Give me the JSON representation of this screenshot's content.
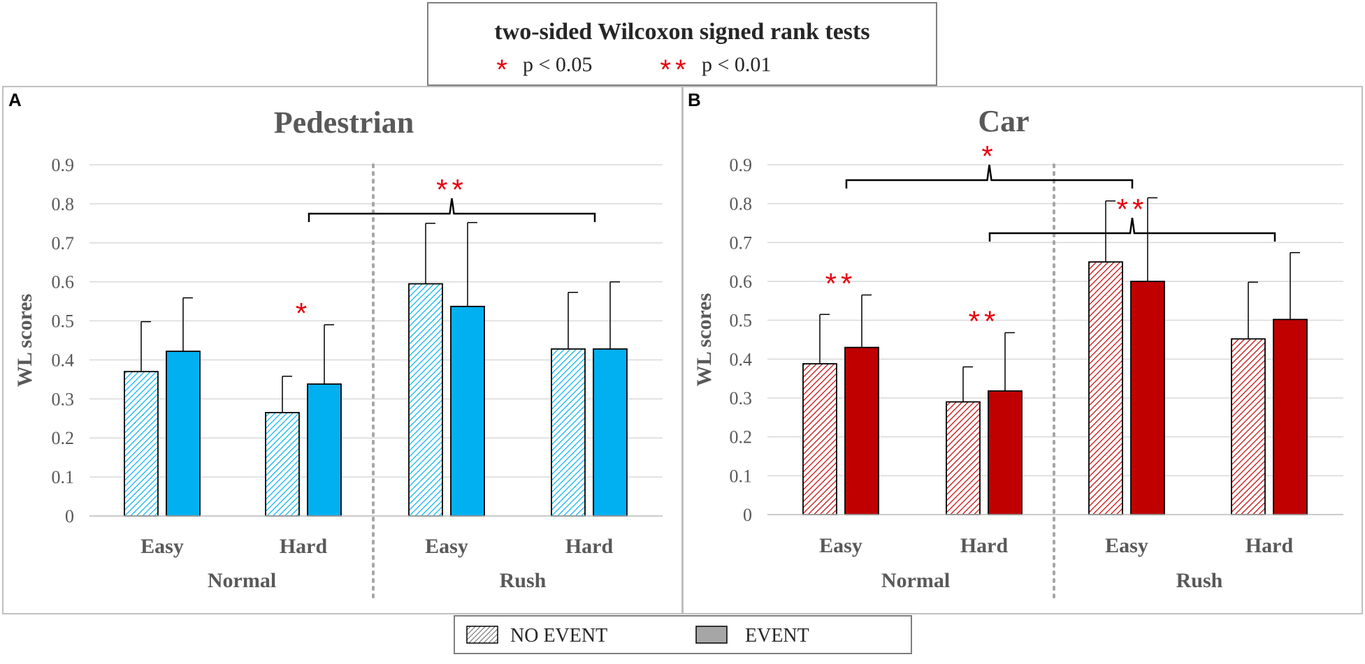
{
  "legend_box": {
    "title": "two-sided Wilcoxon signed rank tests",
    "sig1": {
      "stars": "*",
      "label": "p < 0.05"
    },
    "sig2": {
      "stars": "**",
      "label": "p < 0.01"
    }
  },
  "bottom_legend": {
    "no_event": "NO EVENT",
    "event": "EVENT"
  },
  "colors": {
    "pedestrian": "#00b0f0",
    "car": "#c00000",
    "star": "#e8000d",
    "grid": "#d9d9d9",
    "text": "#595959"
  },
  "chart_data": [
    {
      "panel_label": "A",
      "type": "bar",
      "title": "Pedestrian",
      "ylabel": "WL scores",
      "ylim": [
        0,
        0.9
      ],
      "yticks": [
        "0",
        "0.1",
        "0.2",
        "0.3",
        "0.4",
        "0.5",
        "0.6",
        "0.7",
        "0.8",
        "0.9"
      ],
      "categories": [
        "Easy",
        "Hard",
        "Easy",
        "Hard"
      ],
      "groups": [
        "Normal",
        "Rush"
      ],
      "series": [
        {
          "name": "NO EVENT",
          "values": [
            0.37,
            0.265,
            0.595,
            0.428
          ],
          "errors": [
            0.128,
            0.093,
            0.155,
            0.145
          ]
        },
        {
          "name": "EVENT",
          "values": [
            0.422,
            0.338,
            0.537,
            0.428
          ],
          "errors": [
            0.137,
            0.152,
            0.215,
            0.172
          ]
        }
      ],
      "annotations": [
        {
          "stars": "*",
          "category": 1
        },
        {
          "stars": "**",
          "bracket": [
            1,
            3
          ]
        }
      ]
    },
    {
      "panel_label": "B",
      "type": "bar",
      "title": "Car",
      "ylabel": "WL scores",
      "ylim": [
        0,
        0.9
      ],
      "yticks": [
        "0",
        "0.1",
        "0.2",
        "0.3",
        "0.4",
        "0.5",
        "0.6",
        "0.7",
        "0.8",
        "0.9"
      ],
      "categories": [
        "Easy",
        "Hard",
        "Easy",
        "Hard"
      ],
      "groups": [
        "Normal",
        "Rush"
      ],
      "series": [
        {
          "name": "NO EVENT",
          "values": [
            0.388,
            0.29,
            0.65,
            0.452
          ],
          "errors": [
            0.127,
            0.09,
            0.157,
            0.146
          ]
        },
        {
          "name": "EVENT",
          "values": [
            0.43,
            0.318,
            0.6,
            0.502
          ],
          "errors": [
            0.135,
            0.15,
            0.215,
            0.172
          ]
        }
      ],
      "annotations": [
        {
          "stars": "**",
          "category": 0
        },
        {
          "stars": "**",
          "category": 1
        },
        {
          "stars": "*",
          "bracket": [
            0,
            2
          ]
        },
        {
          "stars": "**",
          "bracket": [
            1,
            3
          ]
        }
      ]
    }
  ]
}
